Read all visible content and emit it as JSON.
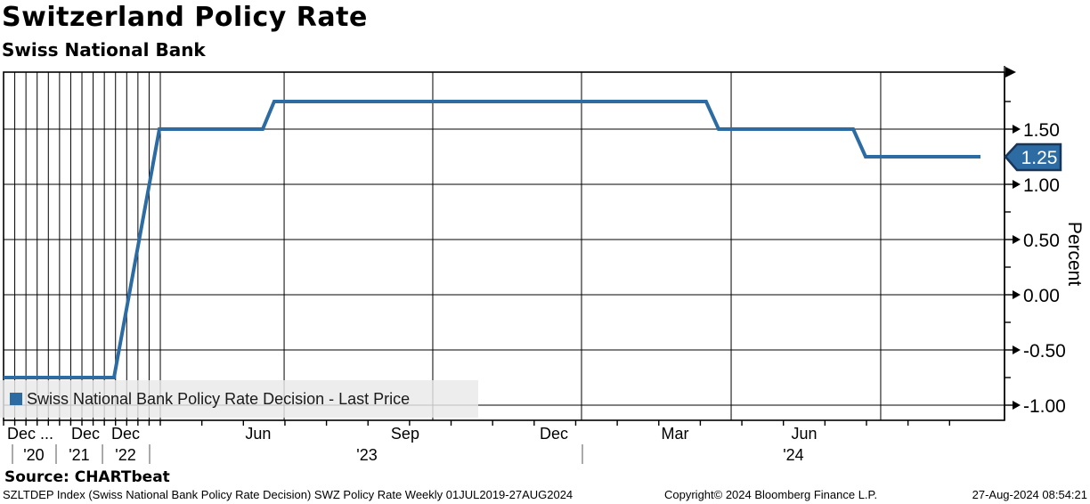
{
  "header": {
    "title": "Switzerland Policy Rate",
    "subtitle": "Swiss National Bank"
  },
  "legend": {
    "label": "Swiss National Bank Policy Rate Decision - Last Price",
    "swatch_color": "#2d6ca3"
  },
  "source_line": "Source: CHARTbeat",
  "footer": {
    "left": "SZLTDEP Index (Swiss National Bank Policy Rate Decision) SWZ Policy Rate  Weekly 01JUL2019-27AUG2024",
    "center": "Copyright© 2024 Bloomberg Finance L.P.",
    "right": "27-Aug-2024 08:54:21"
  },
  "colors": {
    "line": "#2d6ca3",
    "badge_fill": "#2d6ca3",
    "badge_border": "#16365c",
    "grid": "#000000"
  },
  "chart_data": {
    "type": "line",
    "title": "Switzerland Policy Rate",
    "subtitle": "Swiss National Bank",
    "series_name": "Swiss National Bank Policy Rate Decision - Last Price",
    "ylabel": "Percent",
    "ylim": [
      -1.15,
      2.0
    ],
    "last_price": "1.25",
    "grid": true,
    "legend_position": "bottom-left",
    "y_ticks_major": [
      {
        "value": 1.5,
        "label": "1.50"
      },
      {
        "value": 1.0,
        "label": "1.00"
      },
      {
        "value": 0.5,
        "label": "0.50"
      },
      {
        "value": 0.0,
        "label": "0.00"
      },
      {
        "value": -0.5,
        "label": "-0.50"
      },
      {
        "value": -1.0,
        "label": "-1.00"
      }
    ],
    "y_ticks_minor": [
      1.75,
      0.75,
      0.25,
      -0.25,
      -0.75
    ],
    "observed_rate_path": [
      {
        "from": "chart start (Dec '19, compressed history)",
        "rate": -0.75
      },
      {
        "from": "end of compressed '22 section",
        "rate": 1.5
      },
      {
        "from": "Jun '23",
        "rate": 1.75
      },
      {
        "from": "Mar '24",
        "rate": 1.5
      },
      {
        "from": "Jun '24 through 27-Aug-2024",
        "rate": 1.25
      }
    ],
    "polyline": [
      [
        0.0,
        -0.75
      ],
      [
        0.1103,
        -0.75
      ],
      [
        0.1557,
        1.5
      ],
      [
        0.2589,
        1.5
      ],
      [
        0.2704,
        1.75
      ],
      [
        0.7019,
        1.75
      ],
      [
        0.7144,
        1.5
      ],
      [
        0.8488,
        1.5
      ],
      [
        0.8612,
        1.25
      ],
      [
        0.976,
        1.25
      ]
    ],
    "x_month_labels": [
      {
        "label": "Dec ...",
        "xf": 0.0036,
        "anchor": "start"
      },
      {
        "label": "Dec",
        "xf": 0.0819,
        "anchor": "middle"
      },
      {
        "label": "Dec",
        "xf": 0.1219,
        "anchor": "middle"
      },
      {
        "label": "Jun",
        "xf": 0.2544,
        "anchor": "middle"
      },
      {
        "label": "Sep",
        "xf": 0.4012,
        "anchor": "middle"
      },
      {
        "label": "Dec",
        "xf": 0.5498,
        "anchor": "middle"
      },
      {
        "label": "Mar",
        "xf": 0.6708,
        "anchor": "middle"
      },
      {
        "label": "Jun",
        "xf": 0.7998,
        "anchor": "middle"
      }
    ],
    "x_year_labels": [
      {
        "label": "'20",
        "xf": 0.0302
      },
      {
        "label": "'21",
        "xf": 0.0756
      },
      {
        "label": "'22",
        "xf": 0.1219
      },
      {
        "label": "'23",
        "xf": 0.363
      },
      {
        "label": "'24",
        "xf": 0.7891
      }
    ],
    "layout": {
      "compressed_end_xf": 0.1566,
      "compressed_gridline_count": 15,
      "major_gridlines_xf": [
        0.2803,
        0.4288,
        0.5774,
        0.7269,
        0.8763
      ],
      "minor_tick_step_xf": 0.0415,
      "year_separators_xf": [
        0.0089,
        0.0525,
        0.0988,
        0.1459,
        0.5783
      ]
    }
  }
}
